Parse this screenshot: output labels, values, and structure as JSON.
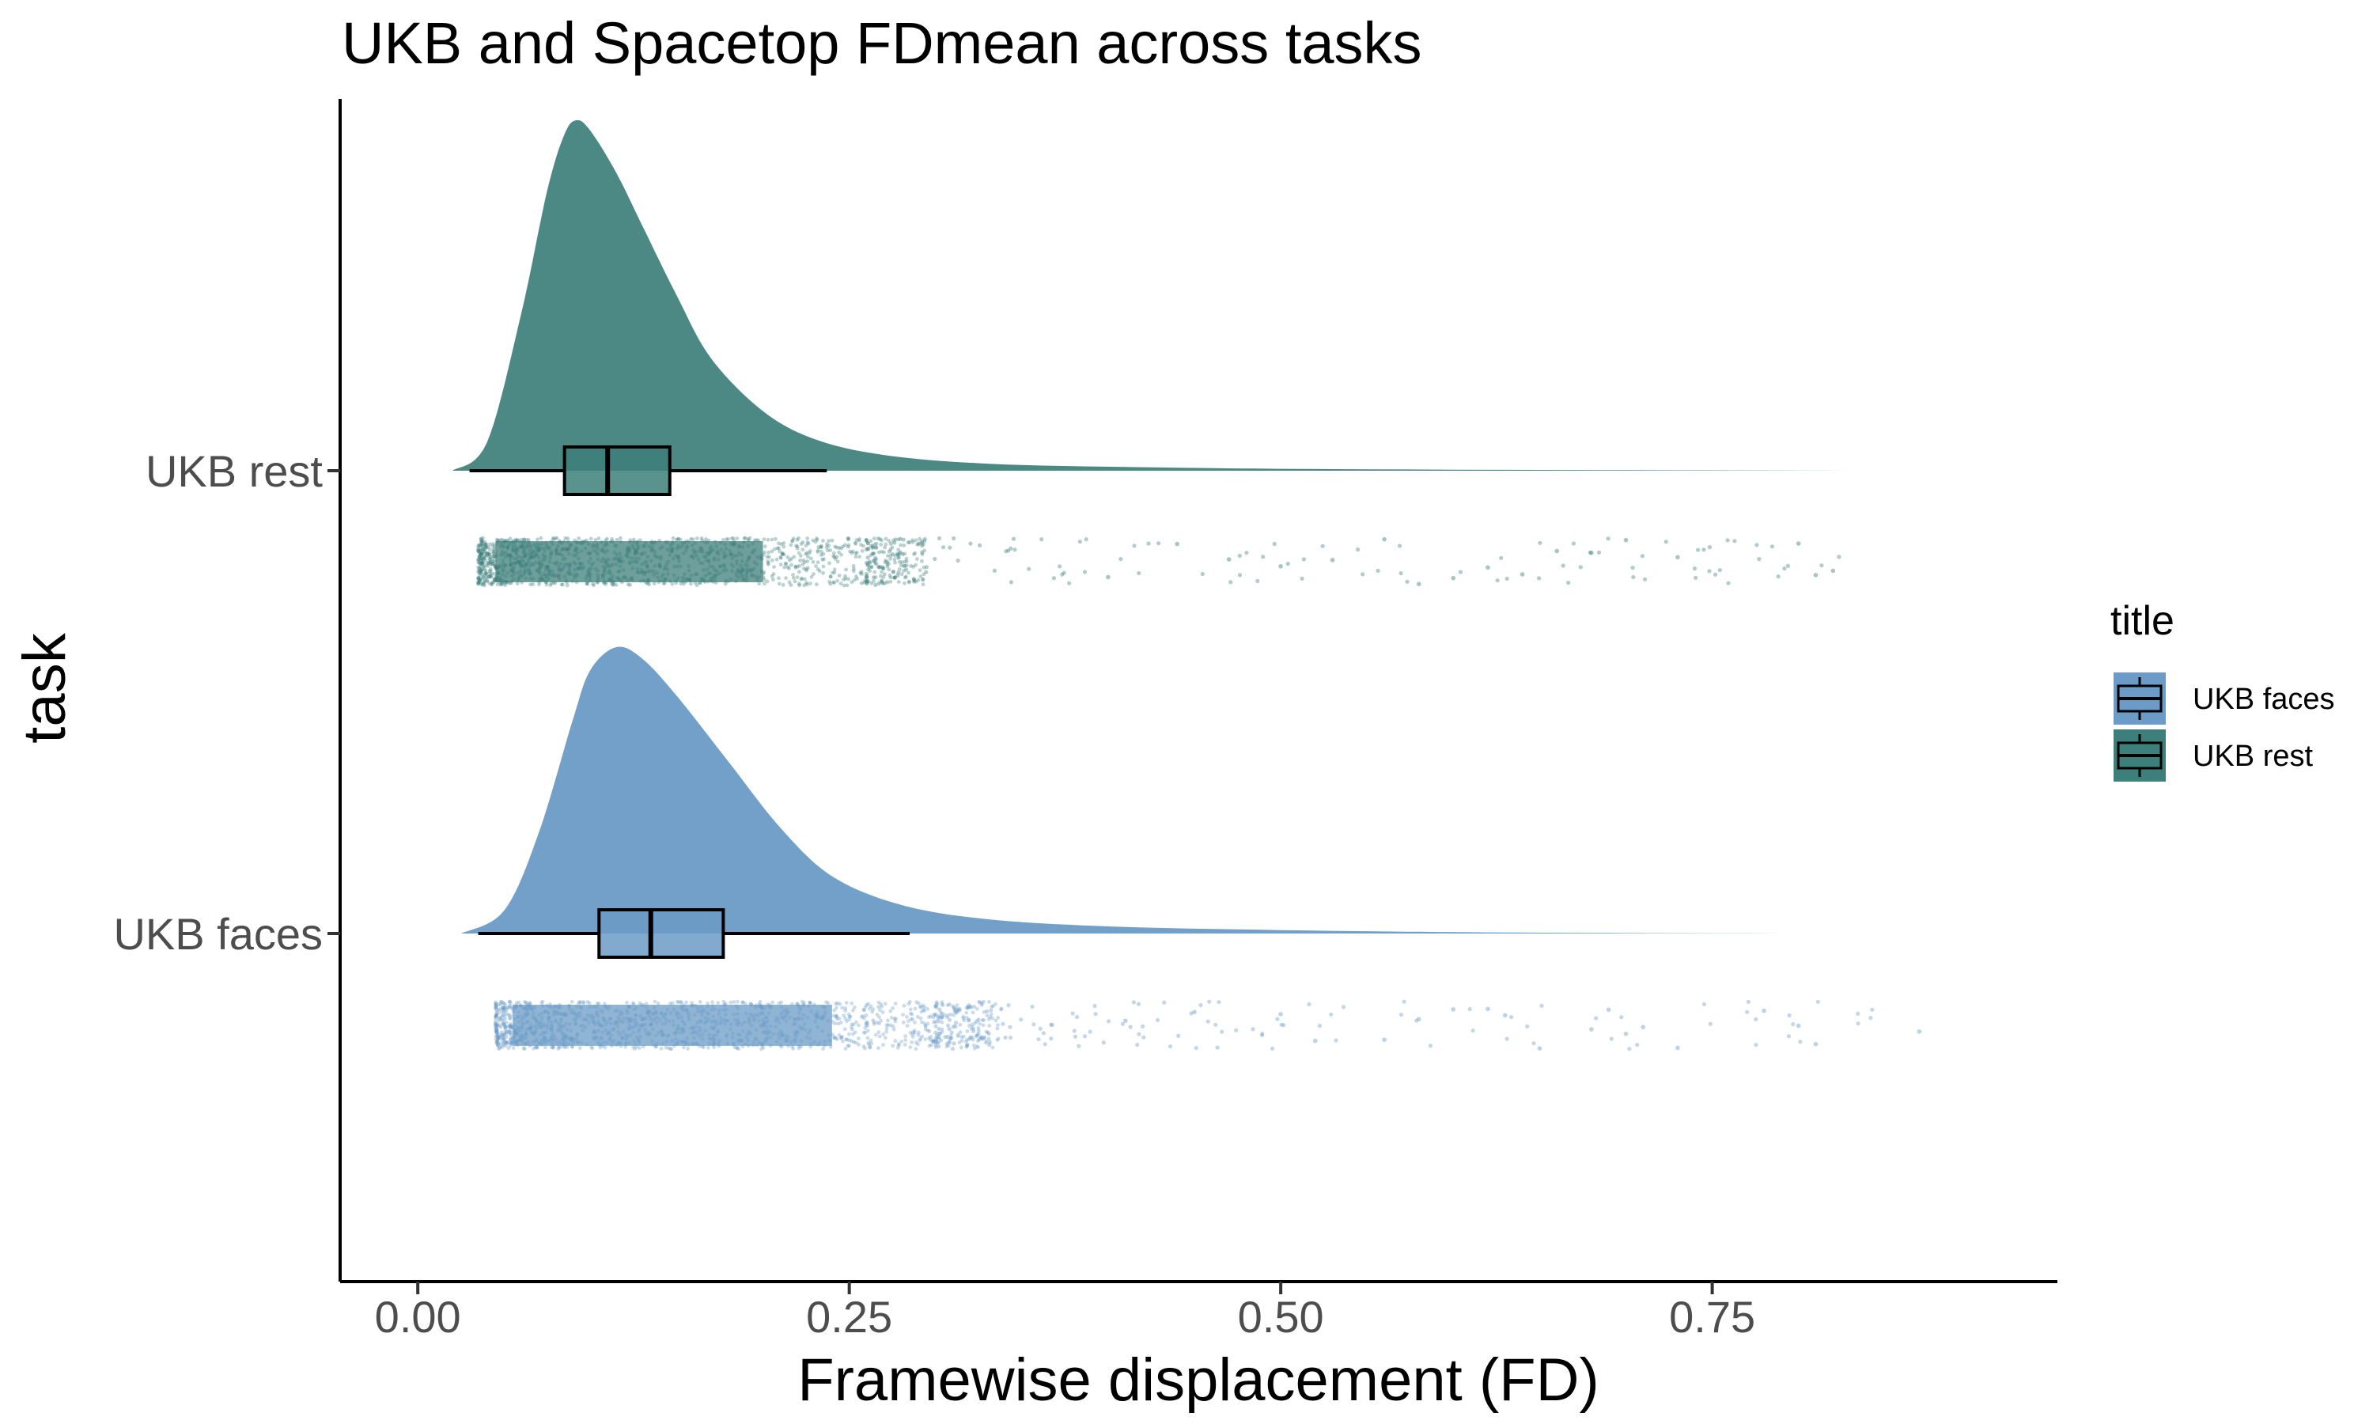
{
  "chart_data": {
    "type": "raincloud",
    "title": "UKB and Spacetop FDmean across tasks",
    "xlabel": "Framewise displacement (FD)",
    "ylabel": "task",
    "xlim": [
      -0.045,
      0.95
    ],
    "x_ticks": [
      0.0,
      0.25,
      0.5,
      0.75
    ],
    "x_tick_labels": [
      "0.00",
      "0.25",
      "0.50",
      "0.75"
    ],
    "categories": [
      "UKB faces",
      "UKB rest"
    ],
    "legend": {
      "title": "title",
      "position": "right",
      "items": [
        "UKB faces",
        "UKB rest"
      ]
    },
    "grid": false,
    "series": [
      {
        "name": "UKB faces",
        "color": "#6b9bc6",
        "box": {
          "whisker_low": 0.035,
          "q1": 0.105,
          "median": 0.135,
          "q3": 0.177,
          "whisker_high": 0.285
        },
        "density": {
          "range": [
            0.025,
            0.79
          ],
          "mode": 0.115,
          "x": [
            0.025,
            0.05,
            0.07,
            0.09,
            0.1,
            0.115,
            0.13,
            0.15,
            0.18,
            0.21,
            0.24,
            0.28,
            0.33,
            0.4,
            0.5,
            0.62,
            0.79
          ],
          "y": [
            0.0,
            0.08,
            0.35,
            0.75,
            0.92,
            1.0,
            0.96,
            0.83,
            0.6,
            0.37,
            0.2,
            0.1,
            0.05,
            0.025,
            0.012,
            0.004,
            0.0
          ]
        },
        "points": {
          "dense_range": [
            0.045,
            0.3
          ],
          "sparse_range": [
            0.3,
            0.87
          ],
          "outliers": [
            0.41,
            0.45,
            0.5,
            0.52,
            0.56,
            0.58,
            0.6,
            0.62,
            0.63,
            0.65,
            0.68,
            0.69,
            0.7,
            0.71,
            0.73,
            0.78,
            0.8,
            0.81,
            0.87
          ]
        }
      },
      {
        "name": "UKB rest",
        "color": "#3d7f7a",
        "box": {
          "whisker_low": 0.03,
          "q1": 0.085,
          "median": 0.11,
          "q3": 0.146,
          "whisker_high": 0.237
        },
        "density": {
          "range": [
            0.02,
            0.83
          ],
          "mode": 0.092,
          "x": [
            0.02,
            0.04,
            0.06,
            0.075,
            0.085,
            0.092,
            0.1,
            0.115,
            0.13,
            0.15,
            0.17,
            0.2,
            0.23,
            0.27,
            0.33,
            0.42,
            0.55,
            0.83
          ],
          "y": [
            0.0,
            0.08,
            0.45,
            0.8,
            0.96,
            1.0,
            0.97,
            0.85,
            0.7,
            0.5,
            0.32,
            0.17,
            0.09,
            0.045,
            0.02,
            0.01,
            0.004,
            0.0
          ]
        },
        "points": {
          "dense_range": [
            0.035,
            0.26
          ],
          "sparse_range": [
            0.26,
            0.83
          ],
          "outliers": [
            0.4,
            0.44,
            0.47,
            0.5,
            0.53,
            0.56,
            0.58,
            0.6,
            0.62,
            0.64,
            0.66,
            0.68,
            0.7,
            0.73,
            0.8,
            0.81,
            0.82
          ]
        }
      }
    ]
  }
}
